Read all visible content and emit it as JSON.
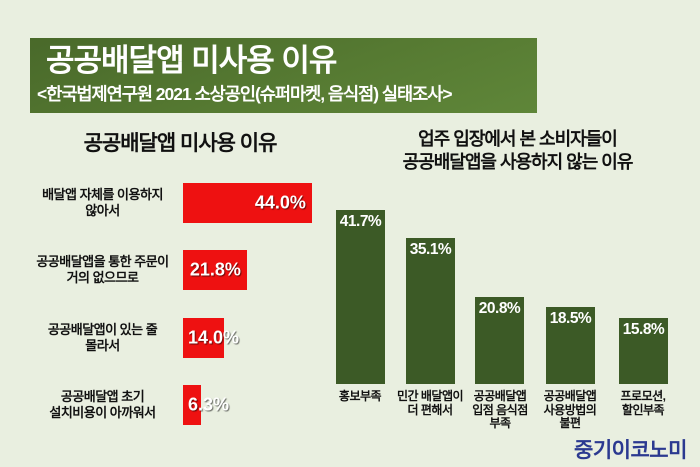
{
  "page": {
    "background": "#e9efe0"
  },
  "header": {
    "title": "공공배달앱 미사용 이유",
    "subtitle": "<한국법제연구원 2021 소상공인(슈퍼마켓, 음식점) 실태조사>",
    "bg_color_top": "#49692a",
    "bg_color_bottom": "#5f8639",
    "text_color": "#ffffff"
  },
  "logo": {
    "text": "중기이코노미",
    "color": "#2b3990"
  },
  "chart_data": [
    {
      "type": "bar",
      "orientation": "horizontal",
      "title": "공공배달앱 미사용 이유",
      "categories": [
        "배달앱 자체를 이용하지 않아서",
        "공공배달앱을 통한 주문이 거의 없으므로",
        "공공배달앱이 있는 줄 몰라서",
        "공공배달앱 초기 설치비용이 아까워서"
      ],
      "category_display": [
        "배달앱 자체를 이용하지\n않아서",
        "공공배달앱을 통한 주문이\n거의 없으므로",
        "공공배달앱이 있는 줄\n몰라서",
        "공공배달앱 초기\n설치비용이 아까워서"
      ],
      "values": [
        44.0,
        21.8,
        14.0,
        6.3
      ],
      "value_labels": [
        "44.0%",
        "21.8%",
        "14.0%",
        "6.3%"
      ],
      "bar_color": "#ee1111",
      "value_label_color": "#ffffff",
      "xlim": [
        0,
        46
      ],
      "grid": false,
      "legend": false
    },
    {
      "type": "bar",
      "orientation": "vertical",
      "title": "업주 입장에서 본 소비자들이 공공배달앱을 사용하지 않는 이유",
      "title_display": "업주 입장에서 본 소비자들이\n공공배달앱을 사용하지 않는 이유",
      "categories": [
        "홍보부족",
        "민간 배달앱이 더 편해서",
        "공공배달앱 입점 음식점 부족",
        "공공배달앱 사용방법의 불편",
        "프로모션, 할인부족"
      ],
      "category_display": [
        "홍보부족",
        "민간 배달앱이\n더 편해서",
        "공공배달앱\n입점 음식점\n부족",
        "공공배달앱\n사용방법의\n불편",
        "프로모션,\n할인부족"
      ],
      "values": [
        41.7,
        35.1,
        20.8,
        18.5,
        15.8
      ],
      "value_labels": [
        "41.7%",
        "35.1%",
        "20.8%",
        "18.5%",
        "15.8%"
      ],
      "bar_color": "#3c5a26",
      "value_label_color": "#ffffff",
      "ylim": [
        0,
        45
      ],
      "grid": false,
      "legend": false
    }
  ]
}
